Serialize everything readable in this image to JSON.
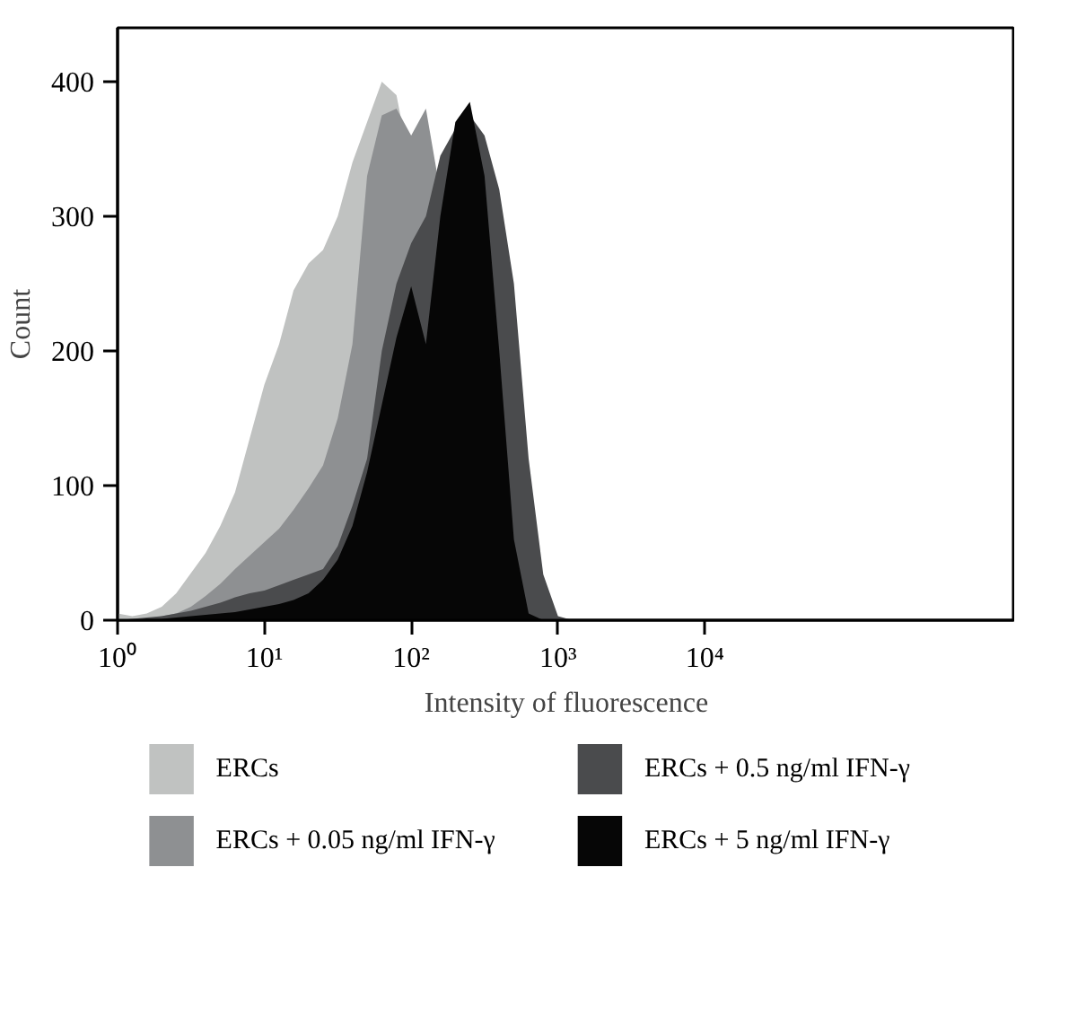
{
  "chart_data": {
    "type": "area",
    "xlabel": "Intensity of fluorescence",
    "ylabel": "Count",
    "log": "x",
    "grid": false,
    "legend": "bottom",
    "x": [
      1,
      1.26,
      1.58,
      2.0,
      2.51,
      3.16,
      3.98,
      5.01,
      6.31,
      7.94,
      10,
      12.6,
      15.8,
      20,
      25.1,
      31.6,
      39.8,
      50.1,
      63.1,
      79.4,
      100,
      126,
      158,
      200,
      251,
      316,
      398,
      501,
      631,
      794,
      1000,
      1260,
      1580,
      2000,
      2510,
      3160,
      3980,
      5010,
      6310,
      7940,
      10000,
      12600,
      15800,
      20000,
      25100,
      31600
    ],
    "xlim": [
      1,
      1300000
    ],
    "xticks": [
      {
        "value": 1,
        "label": "10⁰"
      },
      {
        "value": 10,
        "label": "10¹"
      },
      {
        "value": 100,
        "label": "10²"
      },
      {
        "value": 1000,
        "label": "10³"
      },
      {
        "value": 10000,
        "label": "10⁴"
      }
    ],
    "ylim": [
      0,
      440
    ],
    "yticks": [
      0,
      100,
      200,
      300,
      400
    ],
    "series": [
      {
        "name": "ERCs",
        "color": "#c0c2c1",
        "values": [
          5,
          3,
          5,
          10,
          20,
          35,
          50,
          70,
          95,
          135,
          175,
          205,
          245,
          265,
          275,
          300,
          340,
          370,
          400,
          390,
          null,
          null,
          null,
          null,
          null,
          null,
          0,
          0,
          0,
          0,
          0,
          0,
          0,
          0,
          0,
          0,
          0,
          0,
          0,
          0,
          0,
          0,
          0,
          0,
          0,
          0
        ]
      },
      {
        "name": "ERCs + 0.05 ng/ml IFN-γ",
        "color": "#8e9092",
        "values": [
          0,
          0,
          1,
          3,
          5,
          10,
          18,
          27,
          38,
          48,
          58,
          68,
          82,
          98,
          115,
          150,
          205,
          330,
          375,
          380,
          360,
          380,
          null,
          null,
          null,
          null,
          null,
          0,
          0,
          0,
          0,
          0,
          0,
          0,
          0,
          0,
          0,
          0,
          0,
          0,
          0,
          0,
          0,
          0,
          0,
          0
        ]
      },
      {
        "name": "ERCs + 0.5 ng/ml IFN-γ",
        "color": "#4a4b4d",
        "values": [
          0,
          1,
          2,
          3,
          5,
          7,
          10,
          13,
          17,
          20,
          22,
          26,
          30,
          34,
          38,
          55,
          85,
          120,
          200,
          250,
          280,
          300,
          345,
          365,
          375,
          360,
          320,
          250,
          120,
          34,
          3,
          0,
          0,
          0,
          0,
          0,
          0,
          0,
          0,
          0,
          0,
          0,
          0,
          0,
          0,
          0
        ]
      },
      {
        "name": "ERCs + 5 ng/ml IFN-γ",
        "color": "#060606",
        "values": [
          0,
          0,
          1,
          1,
          2,
          3,
          4,
          5,
          6,
          8,
          10,
          12,
          15,
          20,
          30,
          45,
          70,
          110,
          160,
          210,
          248,
          205,
          300,
          370,
          385,
          330,
          200,
          60,
          5,
          0,
          0,
          0,
          0,
          0,
          0,
          0,
          0,
          0,
          0,
          0,
          0,
          0,
          0,
          0,
          0,
          0
        ]
      }
    ]
  }
}
